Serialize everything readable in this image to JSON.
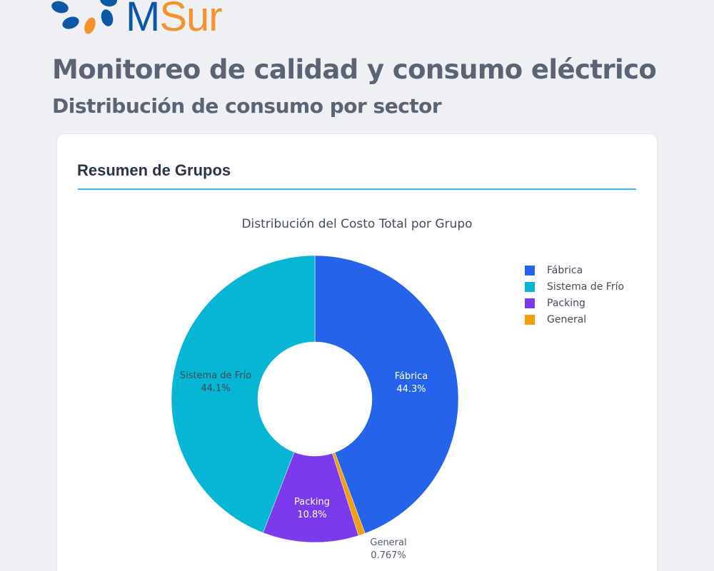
{
  "logo": {
    "text_primary": "M",
    "text_secondary": "Sur",
    "colors": {
      "primary": "#0d57a7",
      "secondary": "#f5922b"
    }
  },
  "header": {
    "title": "Monitoreo de calidad y consumo eléctrico",
    "subtitle": "Distribución de consumo por sector"
  },
  "card": {
    "title": "Resumen de Grupos",
    "divider_color": "#4ab2f2"
  },
  "chart_data": {
    "type": "pie",
    "variant": "donut",
    "title": "Distribución del Costo Total por Grupo",
    "hole": 0.4,
    "categories": [
      "Fábrica",
      "Sistema de Frío",
      "Packing",
      "General"
    ],
    "values": [
      44.3,
      44.1,
      10.8,
      0.767
    ],
    "unit": "%",
    "labels": [
      "44.3%",
      "44.1%",
      "10.8%",
      "0.767%"
    ],
    "colors": [
      "#2563eb",
      "#06b6d4",
      "#7c3aed",
      "#f59e0b"
    ],
    "slice_order_clockwise_from_top": [
      "Fábrica",
      "General",
      "Packing",
      "Sistema de Frío"
    ],
    "legend_position": "right",
    "legend": [
      {
        "label": "Fábrica",
        "color": "#2563eb"
      },
      {
        "label": "Sistema de Frío",
        "color": "#06b6d4"
      },
      {
        "label": "Packing",
        "color": "#7c3aed"
      },
      {
        "label": "General",
        "color": "#f59e0b"
      }
    ],
    "slice_labels": {
      "fabrica": {
        "name": "Fábrica",
        "pct": "44.3%"
      },
      "frio": {
        "name": "Sistema de Frío",
        "pct": "44.1%"
      },
      "packing": {
        "name": "Packing",
        "pct": "10.8%"
      },
      "general": {
        "name": "General",
        "pct": "0.767%"
      }
    }
  }
}
